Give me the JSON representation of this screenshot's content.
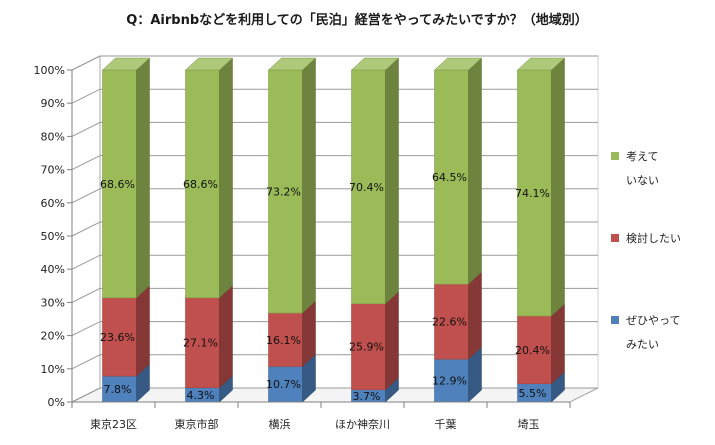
{
  "chart_data": {
    "type": "bar",
    "stacked": true,
    "percent": true,
    "three_d": true,
    "title": "Q：Airbnbなどを利用しての「民泊」経営をやってみたいですか？（地域別）",
    "categories": [
      "東京23区",
      "東京市部",
      "横浜",
      "ほか神奈川",
      "千葉",
      "埼玉"
    ],
    "series": [
      {
        "name": "ぜひやってみたい",
        "legend_lines": [
          "ぜひやって",
          "みたい"
        ],
        "color": "#4f81bd",
        "values": [
          7.8,
          4.3,
          10.7,
          3.7,
          12.9,
          5.5
        ],
        "labels": [
          "7.8%",
          "4.3%",
          "10.7%",
          "3.7%",
          "12.9%",
          "5.5%"
        ]
      },
      {
        "name": "検討したい",
        "legend_lines": [
          "検討したい"
        ],
        "color": "#c0504d",
        "values": [
          23.6,
          27.1,
          16.1,
          25.9,
          22.6,
          20.4
        ],
        "labels": [
          "23.6%",
          "27.1%",
          "16.1%",
          "25.9%",
          "22.6%",
          "20.4%"
        ]
      },
      {
        "name": "考えていない",
        "legend_lines": [
          "考えて",
          "いない"
        ],
        "color": "#9bbb59",
        "values": [
          68.6,
          68.6,
          73.2,
          70.4,
          64.5,
          74.1
        ],
        "labels": [
          "68.6%",
          "68.6%",
          "73.2%",
          "70.4%",
          "64.5%",
          "74.1%"
        ]
      }
    ],
    "yticks": [
      "0%",
      "10%",
      "20%",
      "30%",
      "40%",
      "50%",
      "60%",
      "70%",
      "80%",
      "90%",
      "100%"
    ],
    "ylim": [
      0,
      100
    ],
    "grid": true,
    "legend_position": "right"
  }
}
